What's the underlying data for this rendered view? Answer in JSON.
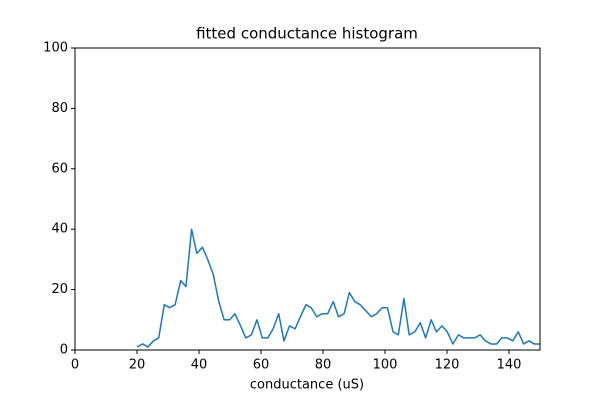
{
  "chart_data": {
    "type": "line",
    "title": "fitted conductance histogram",
    "x_label": "conductance (uS)",
    "x": [
      20.0,
      21.8,
      23.5,
      25.3,
      27.0,
      28.8,
      30.5,
      32.3,
      34.1,
      35.8,
      37.6,
      39.3,
      41.1,
      42.8,
      44.6,
      46.4,
      48.1,
      49.9,
      51.6,
      53.4,
      55.1,
      56.9,
      58.7,
      60.4,
      62.2,
      63.9,
      65.7,
      67.4,
      69.2,
      71.0,
      72.7,
      74.5,
      76.2,
      78.0,
      79.7,
      81.5,
      83.3,
      85.0,
      86.8,
      88.5,
      90.3,
      92.0,
      93.8,
      95.6,
      97.3,
      99.1,
      100.8,
      102.6,
      104.3,
      106.1,
      107.8,
      109.6,
      111.4,
      113.1,
      114.9,
      116.6,
      118.4,
      120.1,
      121.9,
      123.7,
      125.4,
      127.2,
      128.9,
      130.7,
      132.4,
      134.2,
      136.0,
      137.7,
      139.5,
      141.2,
      143.0,
      144.7,
      146.5,
      148.2,
      150.0
    ],
    "series": [
      {
        "color": "#1f77b4",
        "values": [
          1,
          2,
          1,
          3,
          4,
          15,
          14,
          15,
          23,
          21,
          40,
          32,
          34,
          30,
          25,
          16,
          10,
          10,
          12,
          8,
          4,
          5,
          10,
          4,
          4,
          7,
          12,
          3,
          8,
          7,
          11,
          15,
          14,
          11,
          12,
          12,
          16,
          11,
          12,
          19,
          16,
          15,
          13,
          11,
          12,
          14,
          14,
          6,
          5,
          17,
          5,
          6,
          9,
          4,
          10,
          6,
          8,
          6,
          2,
          5,
          4,
          4,
          4,
          5,
          3,
          2,
          2,
          4,
          4,
          3,
          6,
          2,
          3,
          2,
          2
        ]
      }
    ],
    "xlim": [
      0,
      150
    ],
    "xticks": [
      0,
      20,
      40,
      60,
      80,
      100,
      120,
      140
    ],
    "ylim": [
      0,
      100
    ],
    "yticks": [
      0,
      20,
      40,
      60,
      80,
      100
    ]
  }
}
